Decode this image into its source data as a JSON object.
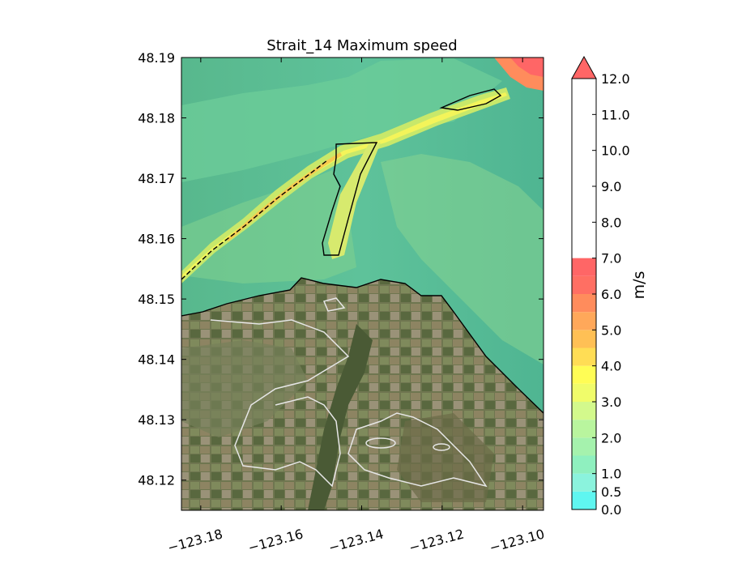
{
  "chart_data": {
    "type": "heatmap",
    "title": "Strait_14 Maximum speed",
    "xlabel": "",
    "ylabel": "",
    "xlim": [
      -123.1848,
      -123.0948
    ],
    "ylim": [
      48.115,
      48.19
    ],
    "x_ticks": [
      -123.18,
      -123.16,
      -123.14,
      -123.12,
      -123.1
    ],
    "x_tick_labels": [
      "−123.18",
      "−123.16",
      "−123.14",
      "−123.12",
      "−123.10"
    ],
    "y_ticks": [
      48.12,
      48.13,
      48.14,
      48.15,
      48.16,
      48.17,
      48.18,
      48.19
    ],
    "y_tick_labels": [
      "48.12",
      "48.13",
      "48.14",
      "48.15",
      "48.16",
      "48.17",
      "48.18",
      "48.19"
    ],
    "grid": false,
    "colorbar": {
      "label": "m/s",
      "extend": "max",
      "levels": [
        0.0,
        0.5,
        1.0,
        1.5,
        2.0,
        2.5,
        3.0,
        3.5,
        4.0,
        4.5,
        5.0,
        5.5,
        6.0,
        6.5,
        7.0,
        7.5,
        8.0,
        8.5,
        9.0,
        9.5,
        10.0,
        10.5,
        11.0,
        11.5,
        12.0
      ],
      "tick_values": [
        0.0,
        0.5,
        1.0,
        2.0,
        3.0,
        4.0,
        5.0,
        6.0,
        7.0,
        8.0,
        9.0,
        10.0,
        11.0,
        12.0
      ],
      "tick_labels": [
        "0.0",
        "0.5",
        "1.0",
        "2.0",
        "3.0",
        "4.0",
        "5.0",
        "6.0",
        "7.0",
        "8.0",
        "9.0",
        "10.0",
        "11.0",
        "12.0"
      ],
      "colors": [
        "#5ff6f0",
        "#8bf3dd",
        "#8ff0bf",
        "#a5f2ad",
        "#b9f59e",
        "#d3f98c",
        "#f0fc6a",
        "#fffd55",
        "#ffdd55",
        "#ffc055",
        "#ffa85a",
        "#ff8c5c",
        "#ff6f63",
        "#ff6666"
      ]
    }
  }
}
